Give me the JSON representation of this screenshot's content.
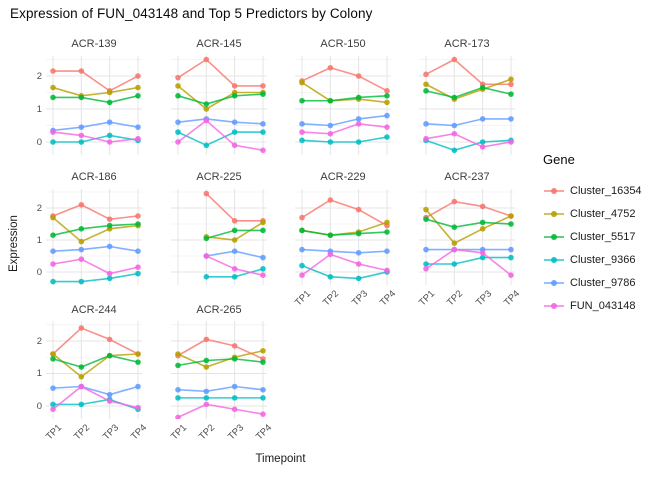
{
  "title": "Expression of FUN_043148 and Top 5 Predictors by Colony",
  "axes": {
    "x_label": "Timepoint",
    "y_label": "Expression",
    "x_ticks": [
      "TP1",
      "TP2",
      "TP3",
      "TP4"
    ],
    "y_ticks": [
      "0",
      "1",
      "2"
    ]
  },
  "legend": {
    "title": "Gene",
    "position": "right",
    "entries": [
      {
        "label": "Cluster_16354",
        "color": "#F8766D"
      },
      {
        "label": "Cluster_4752",
        "color": "#B79F00"
      },
      {
        "label": "Cluster_5517",
        "color": "#00BA38"
      },
      {
        "label": "Cluster_9366",
        "color": "#00BFC4"
      },
      {
        "label": "Cluster_9786",
        "color": "#619CFF"
      },
      {
        "label": "FUN_043148",
        "color": "#F564E3"
      }
    ]
  },
  "chart_data": {
    "type": "line",
    "title": "Expression of FUN_043148 and Top 5 Predictors by Colony",
    "xlabel": "Timepoint",
    "ylabel": "Expression",
    "x": [
      "TP1",
      "TP2",
      "TP3",
      "TP4"
    ],
    "ylim": [
      -0.4,
      2.6
    ],
    "y_major_gridlines": [
      0,
      1,
      2
    ],
    "y_minor_gridlines": [
      0.5,
      1.5,
      2.5
    ],
    "grid": true,
    "legend_position": "right",
    "series_order": [
      "Cluster_16354",
      "Cluster_4752",
      "Cluster_5517",
      "Cluster_9366",
      "Cluster_9786",
      "FUN_043148"
    ],
    "colors": {
      "Cluster_16354": "#F8766D",
      "Cluster_4752": "#B79F00",
      "Cluster_5517": "#00BA38",
      "Cluster_9366": "#00BFC4",
      "Cluster_9786": "#619CFF",
      "FUN_043148": "#F564E3"
    },
    "facets": [
      {
        "name": "ACR-139",
        "series": {
          "Cluster_16354": [
            2.15,
            2.15,
            1.55,
            2.0
          ],
          "Cluster_4752": [
            1.65,
            1.4,
            1.5,
            1.65
          ],
          "Cluster_5517": [
            1.35,
            1.35,
            1.2,
            1.4
          ],
          "Cluster_9366": [
            0.0,
            0.0,
            0.2,
            0.05
          ],
          "Cluster_9786": [
            0.35,
            0.45,
            0.6,
            0.45
          ],
          "FUN_043148": [
            0.3,
            0.2,
            0.0,
            0.1
          ]
        }
      },
      {
        "name": "ACR-145",
        "series": {
          "Cluster_16354": [
            1.95,
            2.5,
            1.7,
            1.7
          ],
          "Cluster_4752": [
            1.7,
            1.0,
            1.5,
            1.5
          ],
          "Cluster_5517": [
            1.4,
            1.15,
            1.4,
            1.45
          ],
          "Cluster_9366": [
            0.3,
            -0.1,
            0.3,
            0.3
          ],
          "Cluster_9786": [
            0.6,
            0.7,
            0.6,
            0.55
          ],
          "FUN_043148": [
            0.0,
            0.65,
            -0.1,
            -0.25
          ]
        }
      },
      {
        "name": "ACR-150",
        "series": {
          "Cluster_16354": [
            1.85,
            2.25,
            2.0,
            1.55
          ],
          "Cluster_4752": [
            1.8,
            1.25,
            1.3,
            1.2
          ],
          "Cluster_5517": [
            1.25,
            1.25,
            1.35,
            1.4
          ],
          "Cluster_9366": [
            0.05,
            0.0,
            0.0,
            0.15
          ],
          "Cluster_9786": [
            0.55,
            0.5,
            0.7,
            0.8
          ],
          "FUN_043148": [
            0.3,
            0.25,
            0.55,
            0.45
          ]
        }
      },
      {
        "name": "ACR-173",
        "series": {
          "Cluster_16354": [
            2.05,
            2.5,
            1.75,
            1.75
          ],
          "Cluster_4752": [
            1.75,
            1.3,
            1.6,
            1.9
          ],
          "Cluster_5517": [
            1.55,
            1.35,
            1.65,
            1.45
          ],
          "Cluster_9366": [
            0.05,
            -0.25,
            0.0,
            0.05
          ],
          "Cluster_9786": [
            0.55,
            0.5,
            0.7,
            0.7
          ],
          "FUN_043148": [
            0.1,
            0.25,
            -0.15,
            0.0
          ]
        }
      },
      {
        "name": "ACR-186",
        "series": {
          "Cluster_16354": [
            1.75,
            2.1,
            1.65,
            1.75
          ],
          "Cluster_4752": [
            1.7,
            0.95,
            1.35,
            1.45
          ],
          "Cluster_5517": [
            1.15,
            1.35,
            1.45,
            1.5
          ],
          "Cluster_9366": [
            -0.3,
            -0.3,
            -0.2,
            -0.05
          ],
          "Cluster_9786": [
            0.65,
            0.7,
            0.8,
            0.65
          ],
          "FUN_043148": [
            0.25,
            0.4,
            -0.05,
            0.15
          ]
        }
      },
      {
        "name": "ACR-225",
        "series": {
          "Cluster_16354": [
            null,
            2.45,
            1.6,
            1.6
          ],
          "Cluster_4752": [
            null,
            1.1,
            1.0,
            1.55
          ],
          "Cluster_5517": [
            null,
            1.05,
            1.3,
            1.3
          ],
          "Cluster_9366": [
            null,
            -0.15,
            -0.15,
            0.1
          ],
          "Cluster_9786": [
            null,
            0.5,
            0.65,
            0.45
          ],
          "FUN_043148": [
            null,
            0.5,
            0.1,
            -0.1
          ]
        }
      },
      {
        "name": "ACR-229",
        "series": {
          "Cluster_16354": [
            1.7,
            2.25,
            1.95,
            1.45
          ],
          "Cluster_4752": [
            1.3,
            1.15,
            1.25,
            1.55
          ],
          "Cluster_5517": [
            1.3,
            1.15,
            1.2,
            1.25
          ],
          "Cluster_9366": [
            0.2,
            -0.15,
            -0.2,
            0.0
          ],
          "Cluster_9786": [
            0.7,
            0.65,
            0.6,
            0.65
          ],
          "FUN_043148": [
            -0.1,
            0.55,
            0.25,
            0.05
          ]
        }
      },
      {
        "name": "ACR-237",
        "series": {
          "Cluster_16354": [
            1.7,
            2.2,
            2.05,
            1.75
          ],
          "Cluster_4752": [
            1.95,
            0.9,
            1.35,
            1.75
          ],
          "Cluster_5517": [
            1.65,
            1.4,
            1.55,
            1.5
          ],
          "Cluster_9366": [
            0.25,
            0.25,
            0.45,
            0.45
          ],
          "Cluster_9786": [
            0.7,
            0.7,
            0.7,
            0.7
          ],
          "FUN_043148": [
            0.1,
            0.7,
            0.6,
            -0.1
          ]
        }
      },
      {
        "name": "ACR-244",
        "series": {
          "Cluster_16354": [
            1.6,
            2.4,
            2.05,
            1.6
          ],
          "Cluster_4752": [
            1.6,
            0.9,
            1.55,
            1.6
          ],
          "Cluster_5517": [
            1.45,
            1.2,
            1.55,
            1.35
          ],
          "Cluster_9366": [
            0.05,
            0.05,
            0.2,
            -0.1
          ],
          "Cluster_9786": [
            0.55,
            0.6,
            0.35,
            0.6
          ],
          "FUN_043148": [
            -0.1,
            0.6,
            0.15,
            -0.05
          ]
        }
      },
      {
        "name": "ACR-265",
        "series": {
          "Cluster_16354": [
            1.55,
            2.05,
            1.85,
            1.45
          ],
          "Cluster_4752": [
            1.6,
            1.2,
            1.5,
            1.7
          ],
          "Cluster_5517": [
            1.25,
            1.4,
            1.45,
            1.35
          ],
          "Cluster_9366": [
            0.25,
            0.25,
            0.25,
            0.25
          ],
          "Cluster_9786": [
            0.5,
            0.45,
            0.6,
            0.5
          ],
          "FUN_043148": [
            -0.35,
            0.05,
            -0.1,
            -0.25
          ]
        }
      }
    ]
  }
}
